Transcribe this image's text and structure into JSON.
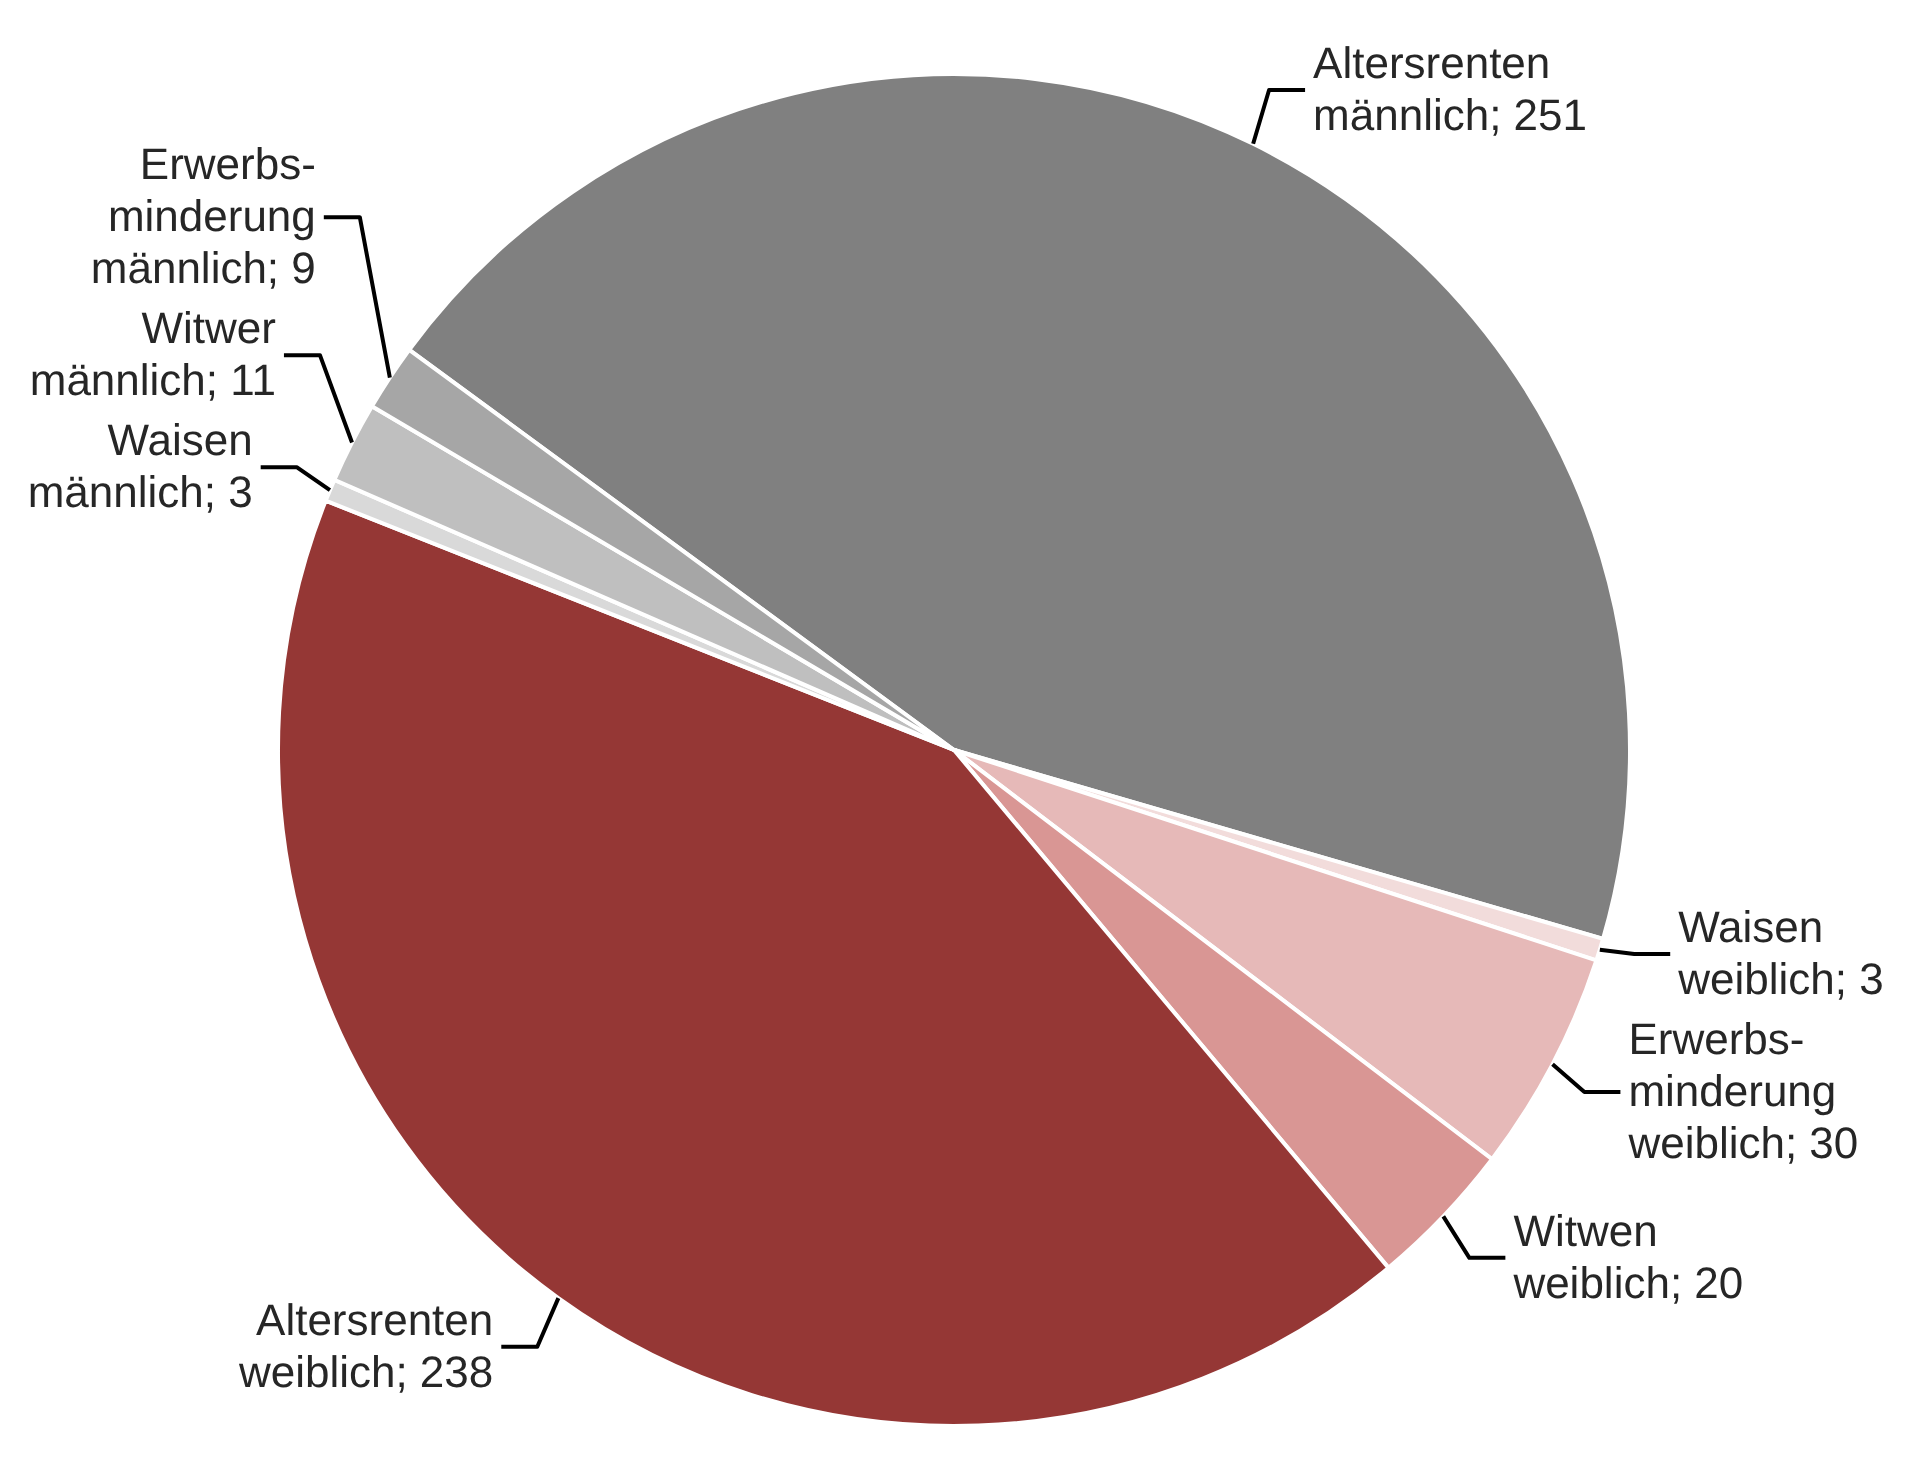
{
  "chart_data": {
    "type": "pie",
    "categories": [
      "Altersrenten\nmännlich",
      "Waisen\nweiblich",
      "Erwerbs-\nminderung\nweiblich",
      "Witwen\nweiblich",
      "Altersrenten\nweiblich",
      "Waisen\nmännlich",
      "Witwer\nmännlich",
      "Erwerbs-\nminderung\nmännlich"
    ],
    "values": [
      251,
      3,
      30,
      20,
      238,
      3,
      11,
      9
    ],
    "colors": [
      "#808080",
      "#f2dcdb",
      "#e6b9b8",
      "#d99694",
      "#953735",
      "#d9d9d9",
      "#bfbfbf",
      "#a6a6a6"
    ],
    "value_labels": [
      "; 251",
      "; 3",
      "; 30",
      "; 20",
      "; 238",
      "; 3",
      "; 11",
      "; 9"
    ]
  }
}
